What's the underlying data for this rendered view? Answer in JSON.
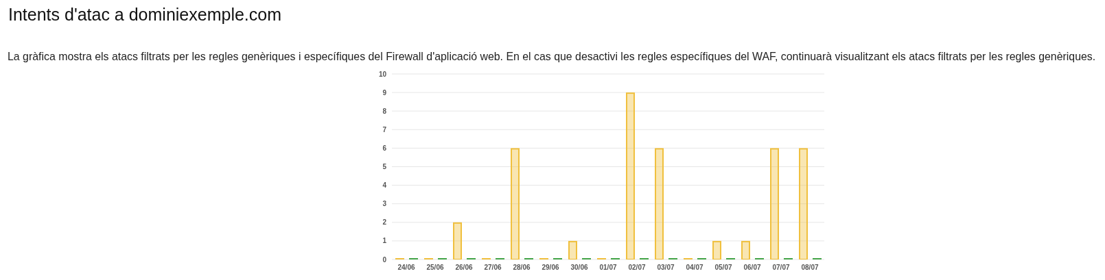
{
  "chart_data": {
    "type": "bar",
    "title": "Intents d'atac a dominiexemple.com",
    "subtitle": "La gràfica mostra els atacs filtrats per les regles genèriques i específiques del Firewall d'aplicació web. En el cas que desactivi les regles específiques del WAF, continuarà visualitzant els atacs filtrats per les regles genèriques.",
    "categories": [
      "24/06",
      "25/06",
      "26/06",
      "27/06",
      "28/06",
      "29/06",
      "30/06",
      "01/07",
      "02/07",
      "03/07",
      "04/07",
      "05/07",
      "06/07",
      "07/07",
      "08/07"
    ],
    "series": [
      {
        "color": "#f0c03e",
        "values": [
          0,
          0,
          2,
          0,
          6,
          0,
          1,
          0,
          9,
          6,
          0,
          1,
          1,
          6,
          6
        ]
      },
      {
        "color": "#45a549",
        "values": [
          0,
          0,
          0,
          0,
          0,
          0,
          0,
          0,
          0,
          0,
          0,
          0,
          0,
          0,
          0
        ]
      }
    ],
    "ylim": [
      0,
      10
    ],
    "yticks": [
      0,
      1,
      2,
      3,
      4,
      5,
      6,
      7,
      8,
      9,
      10
    ],
    "grid": "y"
  }
}
